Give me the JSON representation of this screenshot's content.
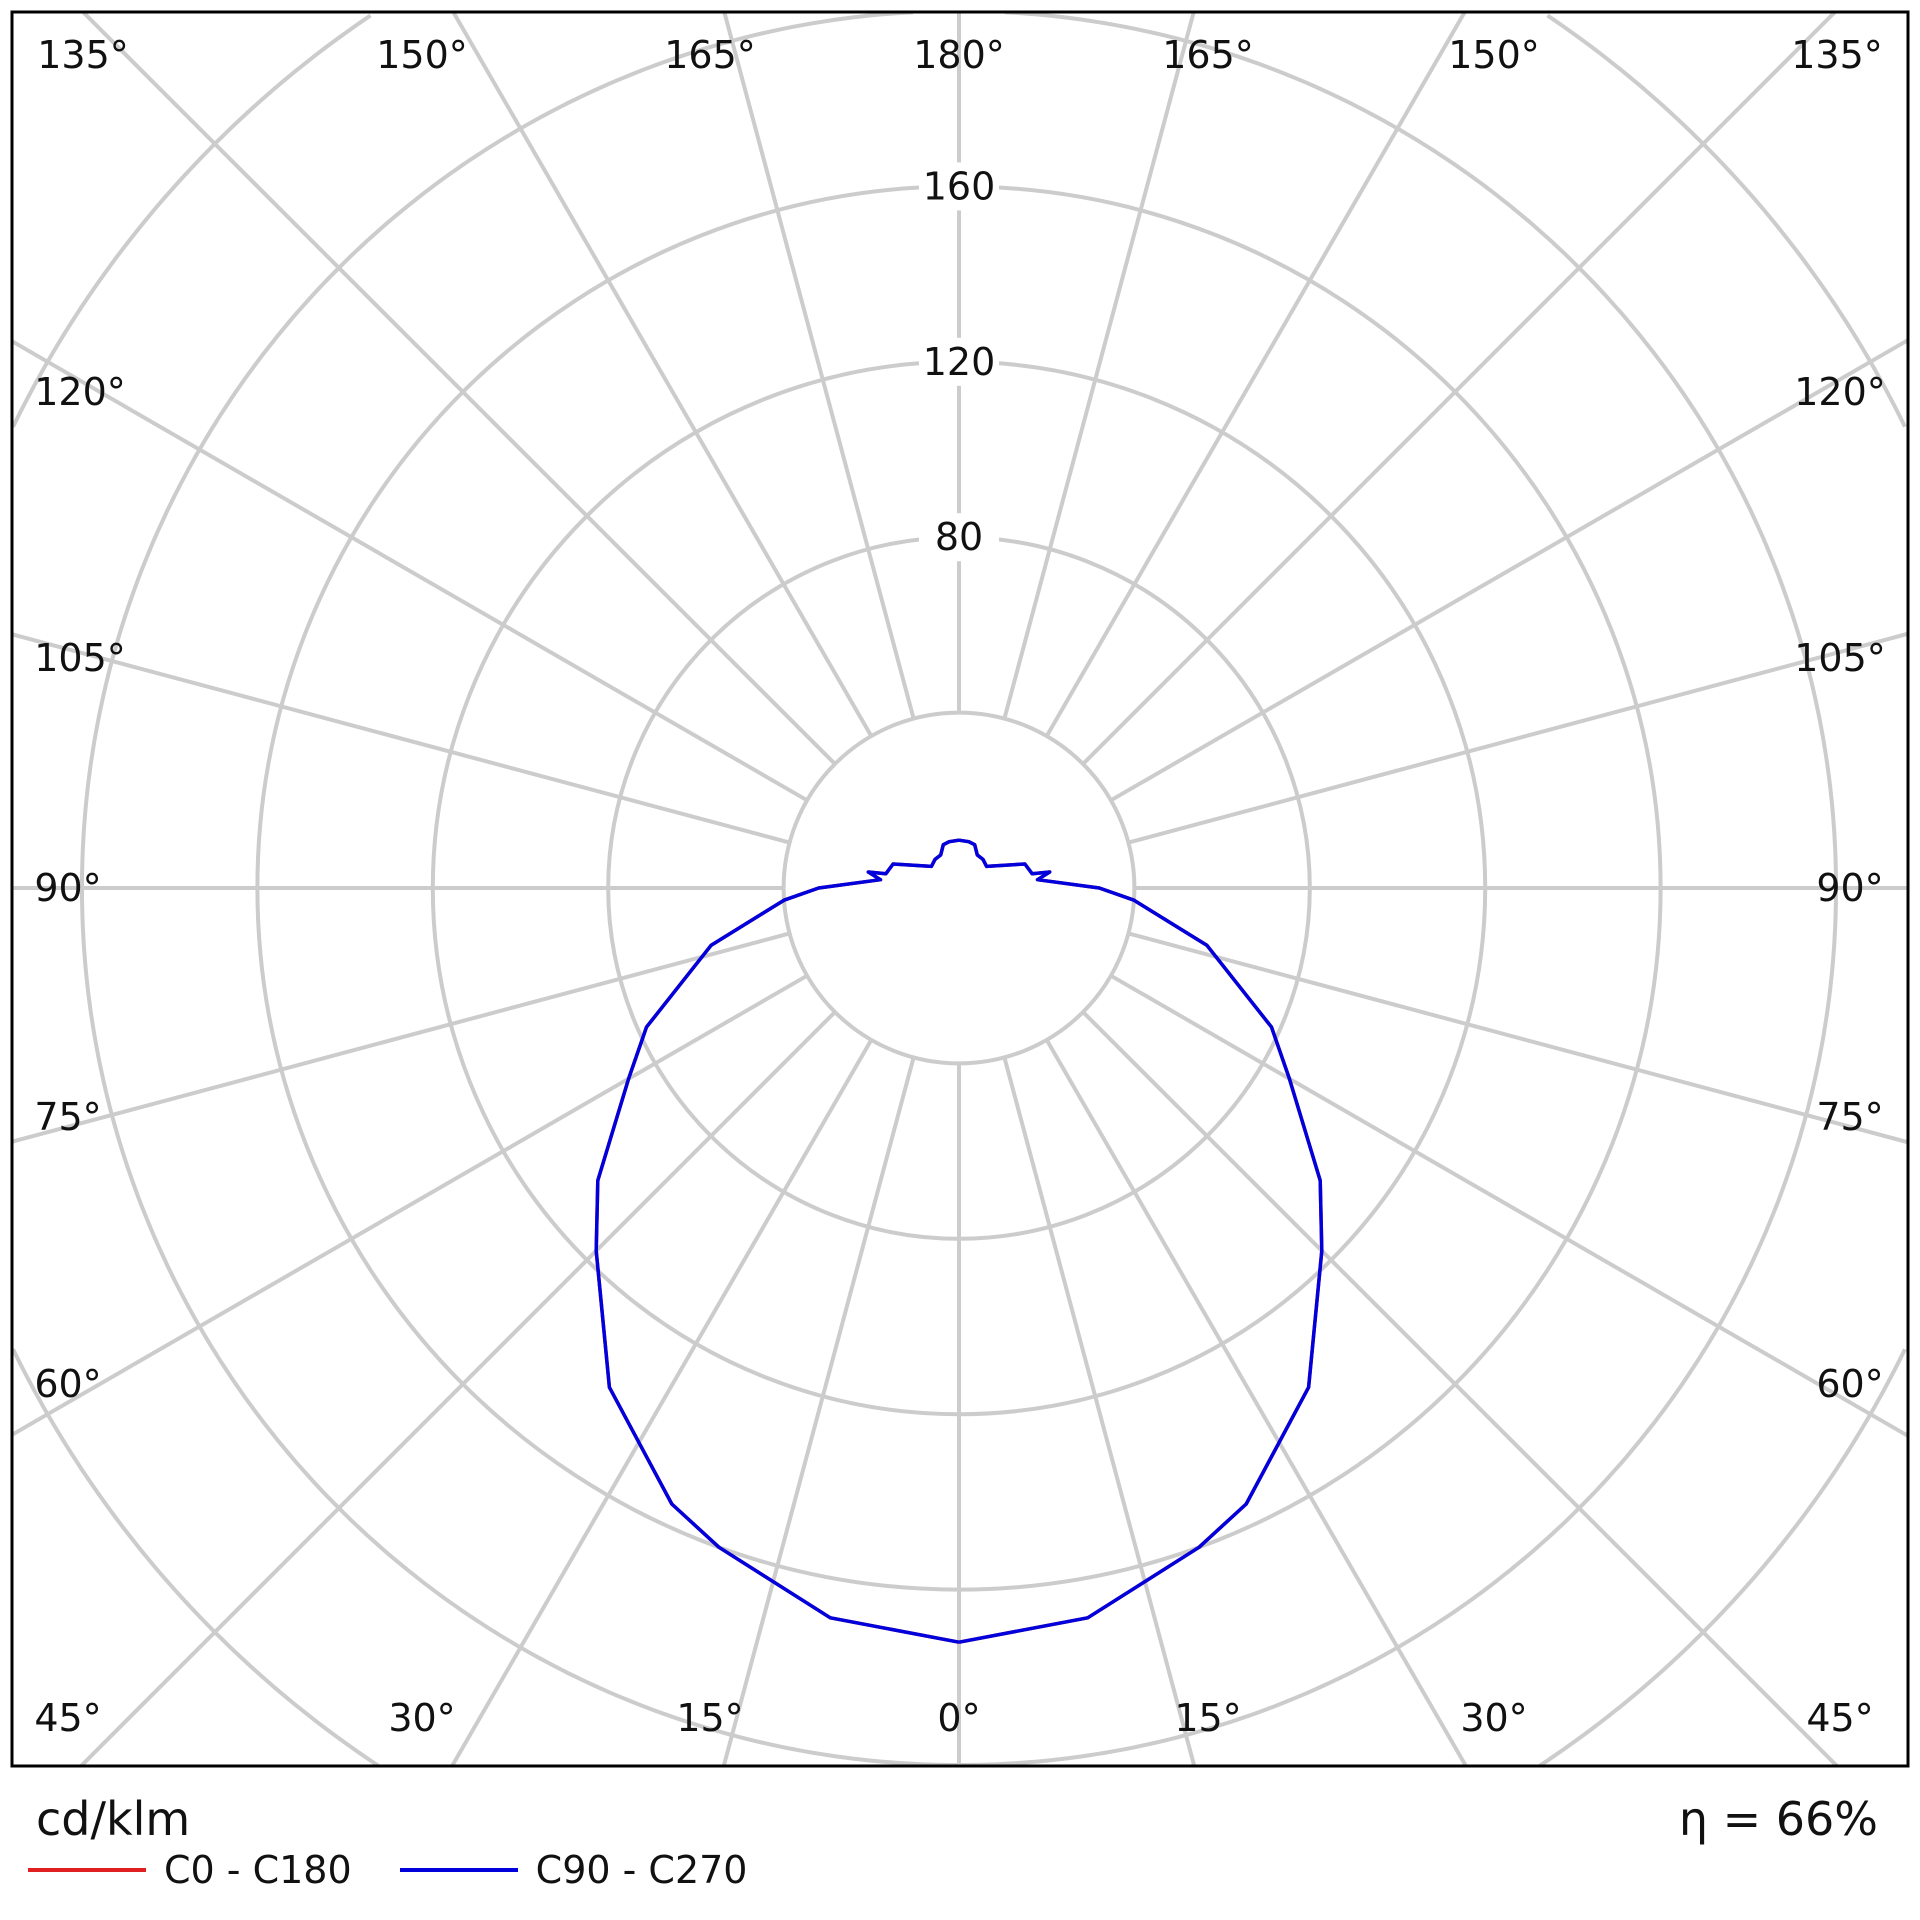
{
  "chart_data": {
    "type": "polar",
    "unit_label": "cd/klm",
    "efficiency_label": "η = 66%",
    "radial_ticks": [
      40,
      80,
      120,
      160,
      200,
      240
    ],
    "radial_tick_labels": [
      "80",
      "120",
      "160"
    ],
    "angle_labels": {
      "top": [
        "135°",
        "150°",
        "165°",
        "180°",
        "165°",
        "150°",
        "135°"
      ],
      "left": [
        "120°",
        "105°",
        "90°",
        "75°",
        "60°",
        "45°"
      ],
      "right": [
        "120°",
        "105°",
        "90°",
        "75°",
        "60°",
        "45°"
      ],
      "bottom": [
        "30°",
        "15°",
        "0°",
        "15°",
        "30°"
      ]
    },
    "grid": true,
    "legend_placement": "bottom-left",
    "gamma": [
      0,
      10,
      20,
      25,
      35,
      45,
      51,
      60,
      66,
      77,
      86,
      90,
      96,
      100,
      101,
      110,
      128,
      140,
      151,
      160,
      168,
      180
    ],
    "series": [
      {
        "name": "C0 - C180",
        "color": "#e02020",
        "values": [
          172,
          169,
          160,
          155,
          139,
          117,
          106,
          87,
          78,
          58,
          40,
          32,
          18,
          21,
          17,
          16,
          8,
          8.5,
          8.6,
          10.5,
          10.8,
          10.9
        ]
      },
      {
        "name": "C90 - C270",
        "color": "#0000dd",
        "values": [
          172,
          169,
          160,
          155,
          139,
          117,
          106,
          87,
          78,
          58,
          40,
          32,
          18,
          21,
          17,
          16,
          8,
          8.5,
          8.6,
          10.5,
          10.8,
          10.9
        ]
      }
    ]
  }
}
